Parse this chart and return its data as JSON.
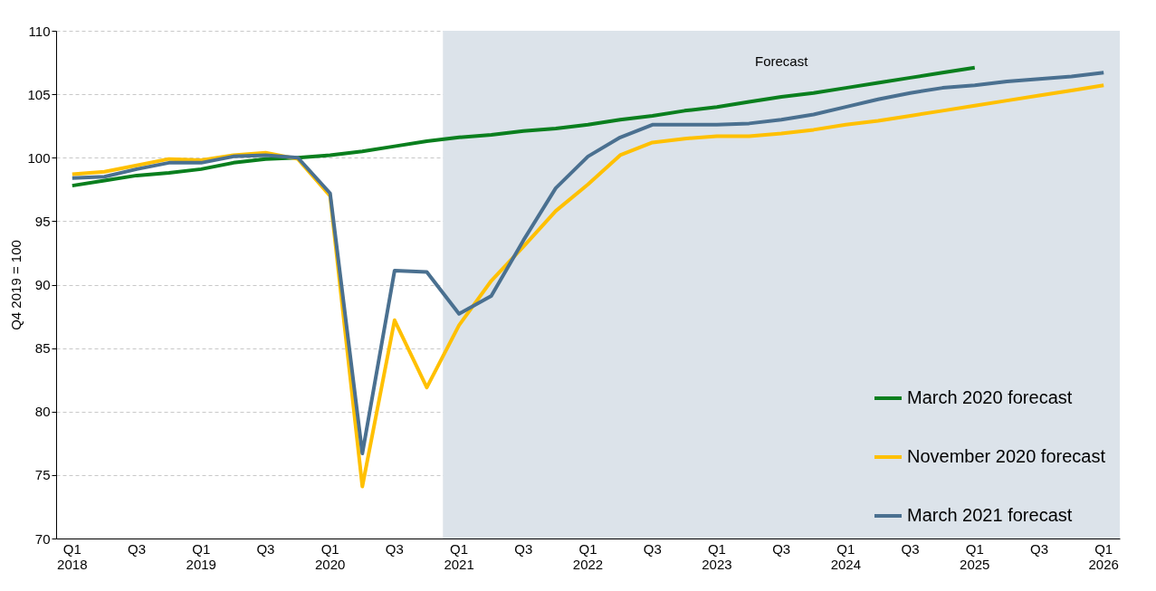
{
  "chart_data": {
    "type": "line",
    "ylabel": "Q4 2019 = 100",
    "categories": [
      "Q1\n2018",
      null,
      "Q3",
      null,
      "Q1\n2019",
      null,
      "Q3",
      null,
      "Q1\n2020",
      null,
      "Q3",
      null,
      "Q1\n2021",
      null,
      "Q3",
      null,
      "Q1\n2022",
      null,
      "Q3",
      null,
      "Q1\n2023",
      null,
      "Q3",
      null,
      "Q1\n2024",
      null,
      "Q3",
      null,
      "Q1\n2025",
      null,
      "Q3",
      null,
      "Q1\n2026"
    ],
    "series": [
      {
        "name": "March 2020 forecast",
        "color": "#0a7f1e",
        "values": [
          97.8,
          98.2,
          98.6,
          98.8,
          99.1,
          99.6,
          99.9,
          100,
          100.2,
          100.5,
          100.9,
          101.3,
          101.6,
          101.8,
          102.1,
          102.3,
          102.6,
          103,
          103.3,
          103.7,
          104,
          104.4,
          104.8,
          105.1,
          105.5,
          105.9,
          106.3,
          106.7,
          107.1,
          null,
          null,
          null,
          null
        ]
      },
      {
        "name": "November 2020 forecast",
        "color": "#ffc000",
        "values": [
          98.7,
          98.9,
          99.4,
          99.9,
          99.8,
          100.2,
          100.4,
          99.9,
          97,
          74.1,
          87.2,
          81.9,
          86.8,
          90.3,
          93,
          95.8,
          97.9,
          100.2,
          101.2,
          101.5,
          101.7,
          101.7,
          101.9,
          102.2,
          102.6,
          102.9,
          103.3,
          103.7,
          104.1,
          104.5,
          104.9,
          105.3,
          105.7
        ]
      },
      {
        "name": "March 2021 forecast",
        "color": "#4a7090",
        "values": [
          98.4,
          98.5,
          99.1,
          99.6,
          99.6,
          100.1,
          100.2,
          100,
          97.2,
          76.7,
          91.1,
          91,
          87.7,
          89.1,
          93.5,
          97.6,
          100.1,
          101.6,
          102.6,
          102.6,
          102.6,
          102.7,
          103,
          103.4,
          104,
          104.6,
          105.1,
          105.5,
          105.7,
          106,
          106.2,
          106.4,
          106.7
        ]
      }
    ],
    "ylim": [
      70,
      110
    ],
    "yticks": [
      70,
      75,
      80,
      85,
      90,
      95,
      100,
      105,
      110
    ],
    "grid": "y",
    "legend": "bottom right",
    "bands": [
      {
        "axis": "x",
        "from": "Q1\n2021",
        "to": "Q1\n2026",
        "label": "Forecast",
        "color": "#dce3ea"
      }
    ]
  }
}
